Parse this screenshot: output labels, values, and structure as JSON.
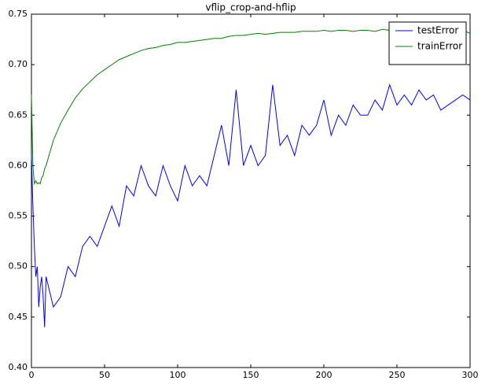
{
  "chart_data": {
    "type": "line",
    "title": "vflip_crop-and-hflip",
    "x": [
      0,
      1,
      2,
      3,
      4,
      5,
      6,
      7,
      8,
      9,
      10,
      15,
      20,
      25,
      30,
      35,
      40,
      45,
      50,
      55,
      60,
      65,
      70,
      75,
      80,
      85,
      90,
      95,
      100,
      105,
      110,
      115,
      120,
      125,
      130,
      135,
      140,
      145,
      150,
      155,
      160,
      165,
      170,
      175,
      180,
      185,
      190,
      195,
      200,
      205,
      210,
      215,
      220,
      225,
      230,
      235,
      240,
      245,
      250,
      255,
      260,
      265,
      270,
      275,
      280,
      285,
      290,
      295,
      300
    ],
    "series": [
      {
        "name": "testError",
        "color": "#0000ff",
        "values": [
          0.61,
          0.56,
          0.52,
          0.49,
          0.5,
          0.46,
          0.48,
          0.49,
          0.47,
          0.44,
          0.49,
          0.46,
          0.47,
          0.5,
          0.49,
          0.52,
          0.53,
          0.52,
          0.54,
          0.56,
          0.54,
          0.58,
          0.57,
          0.6,
          0.58,
          0.57,
          0.6,
          0.58,
          0.565,
          0.6,
          0.58,
          0.59,
          0.58,
          0.61,
          0.64,
          0.6,
          0.675,
          0.6,
          0.62,
          0.6,
          0.61,
          0.68,
          0.62,
          0.63,
          0.61,
          0.64,
          0.63,
          0.64,
          0.665,
          0.63,
          0.65,
          0.64,
          0.66,
          0.65,
          0.65,
          0.665,
          0.655,
          0.68,
          0.66,
          0.67,
          0.66,
          0.675,
          0.665,
          0.67,
          0.655,
          0.66,
          0.665,
          0.67,
          0.665
        ]
      },
      {
        "name": "trainError",
        "color": "#008000",
        "values": [
          0.67,
          0.6,
          0.582,
          0.585,
          0.582,
          0.583,
          0.582,
          0.588,
          0.59,
          0.597,
          0.6,
          0.625,
          0.642,
          0.655,
          0.667,
          0.676,
          0.683,
          0.69,
          0.695,
          0.7,
          0.705,
          0.708,
          0.711,
          0.714,
          0.716,
          0.717,
          0.719,
          0.72,
          0.722,
          0.722,
          0.723,
          0.724,
          0.725,
          0.726,
          0.726,
          0.728,
          0.729,
          0.729,
          0.73,
          0.731,
          0.73,
          0.731,
          0.732,
          0.732,
          0.732,
          0.733,
          0.733,
          0.733,
          0.734,
          0.733,
          0.734,
          0.734,
          0.733,
          0.734,
          0.734,
          0.733,
          0.735,
          0.734,
          0.735,
          0.734,
          0.735,
          0.734,
          0.735,
          0.735,
          0.734,
          0.735,
          0.735,
          0.734,
          0.731
        ]
      }
    ],
    "xlim": [
      0,
      300
    ],
    "xticks": [
      0,
      50,
      100,
      150,
      200,
      250,
      300
    ],
    "ylim": [
      0.4,
      0.75
    ],
    "yticks": [
      {
        "value": 0.4,
        "label": "0.40"
      },
      0.45,
      {
        "value": 0.5,
        "label": "0.50"
      },
      0.55,
      {
        "value": 0.6,
        "label": "0.60"
      },
      0.65,
      {
        "value": 0.7,
        "label": "0.70"
      },
      0.75
    ],
    "legend": "upper right"
  }
}
